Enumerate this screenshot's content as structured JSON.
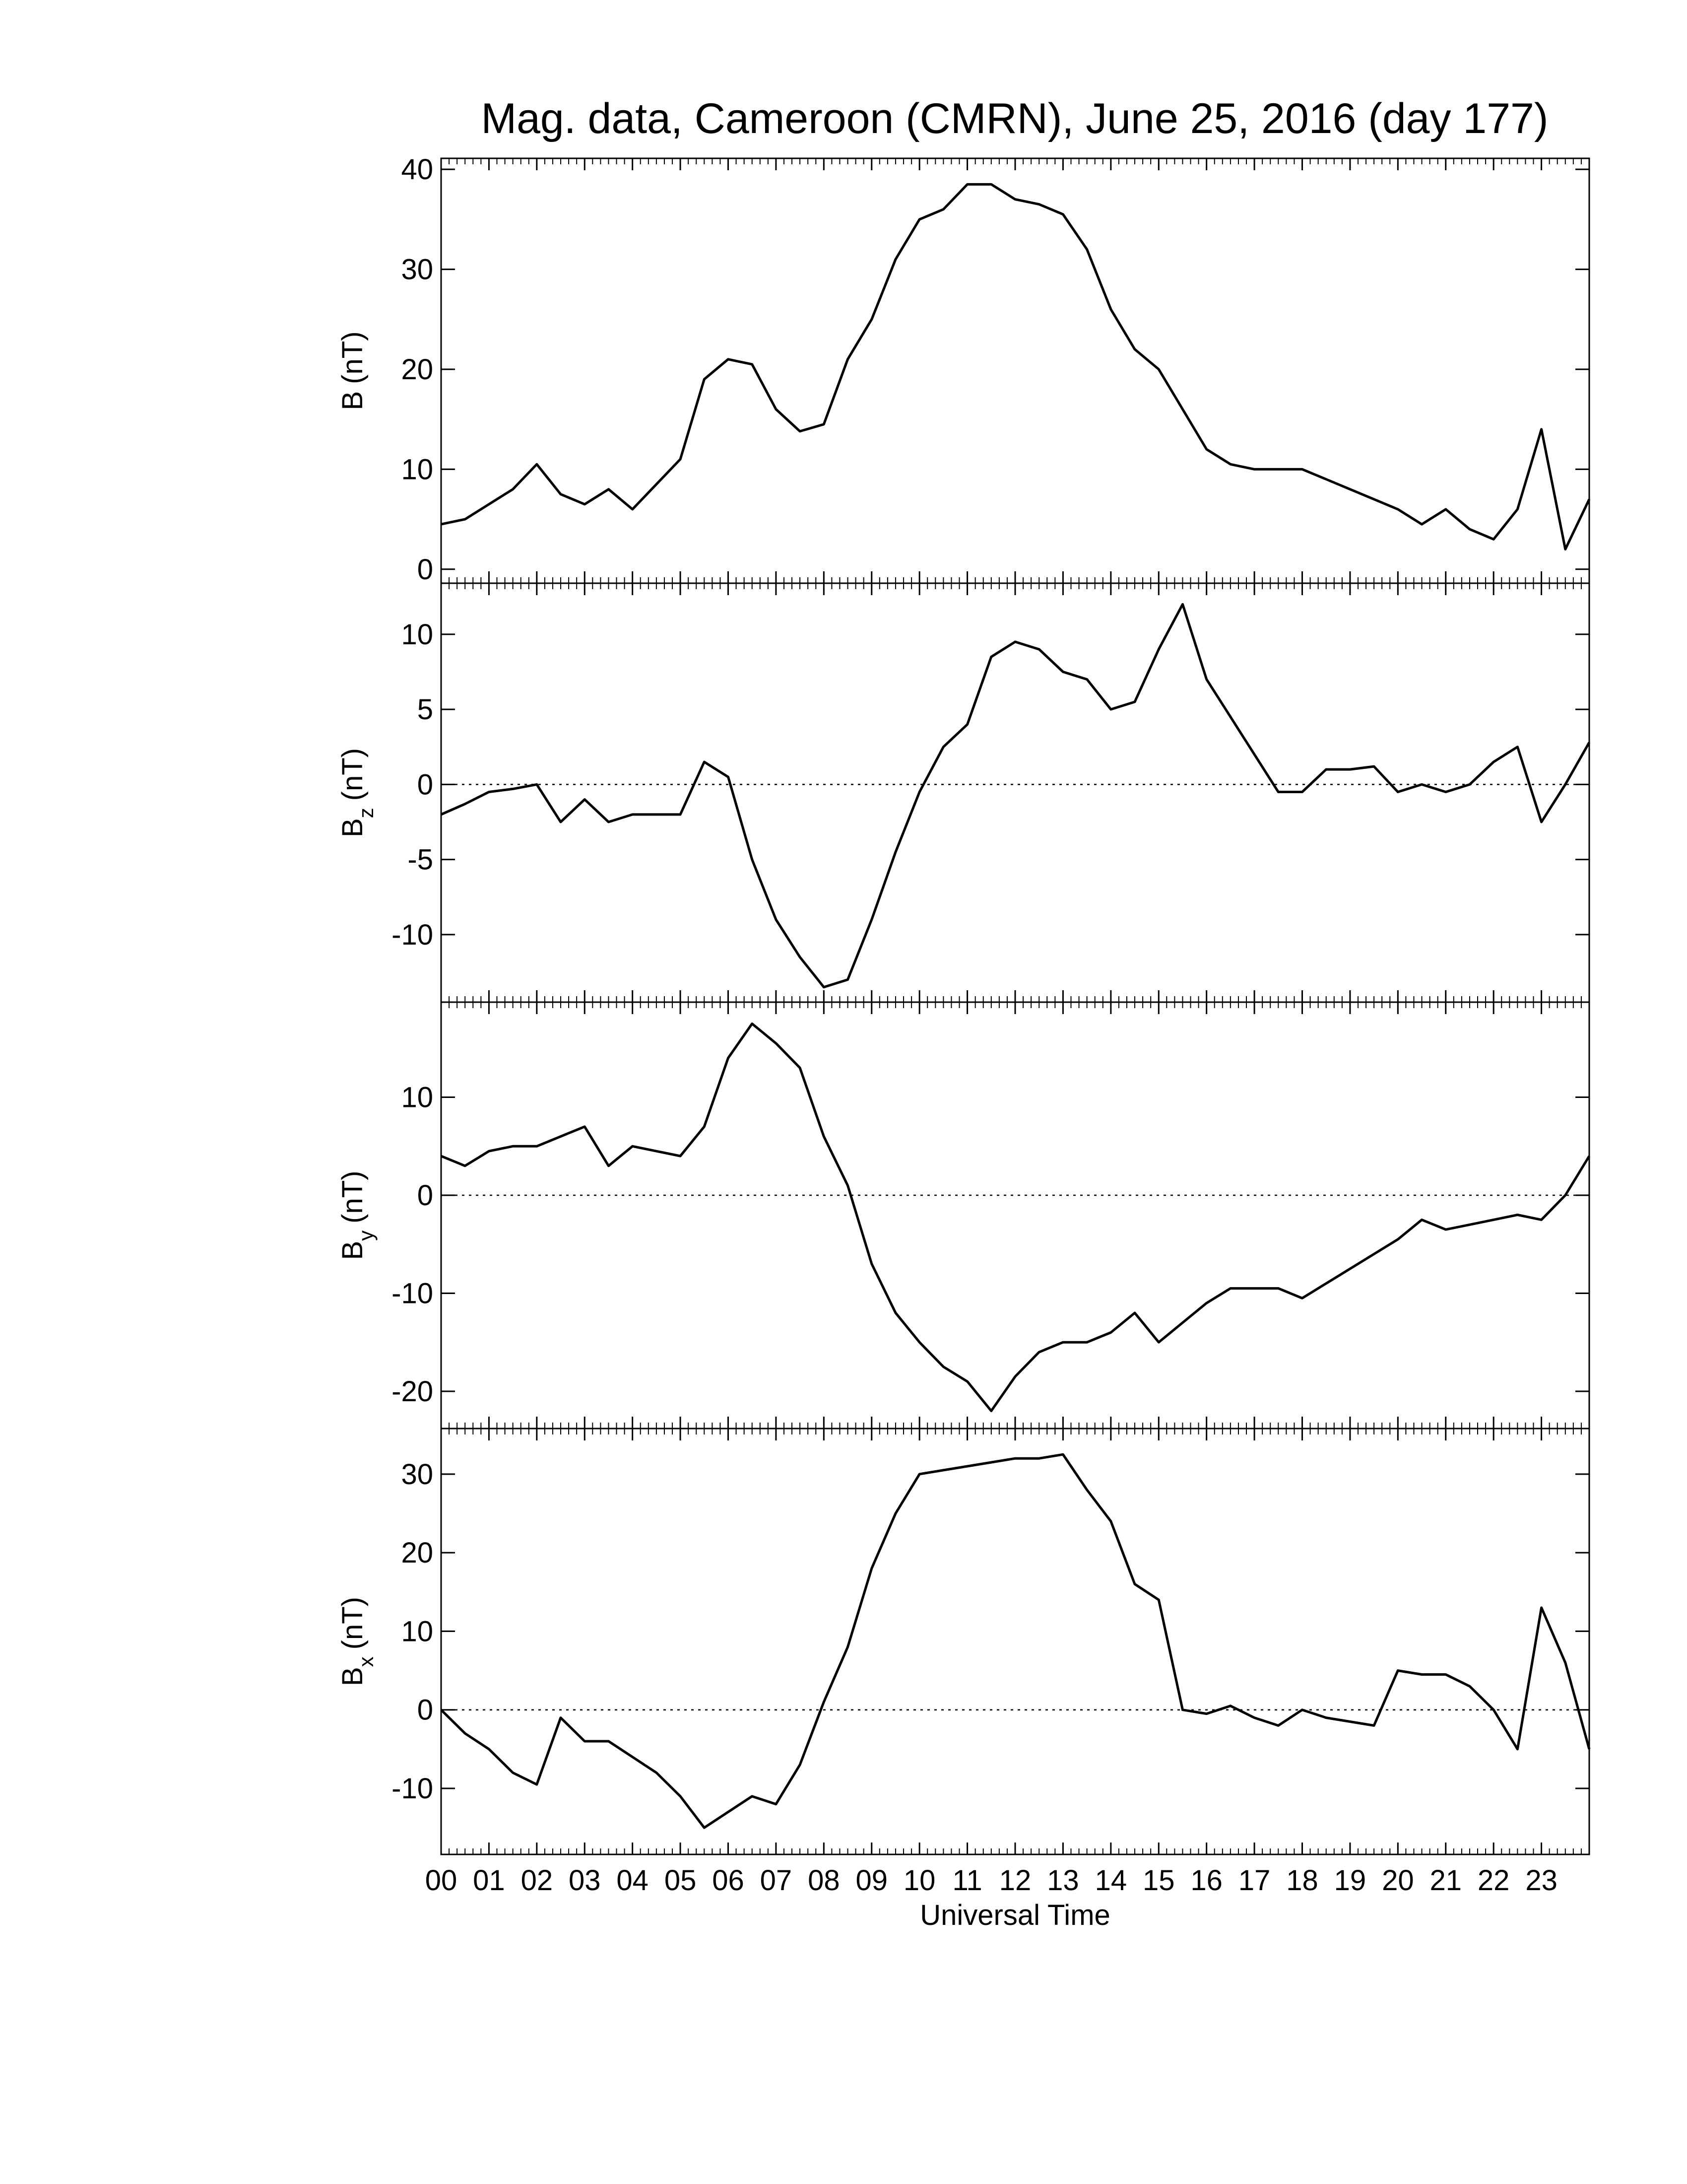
{
  "chart_data": [
    {
      "type": "line",
      "title": "Mag. data, Cameroon (CMRN), June 25, 2016 (day 177)",
      "ylabel": "B",
      "ylabel_unit": "(nT)",
      "color": "#000000",
      "x": [
        0,
        0.5,
        1,
        1.5,
        2,
        2.5,
        3,
        3.5,
        4,
        4.5,
        5,
        5.5,
        6,
        6.5,
        7,
        7.5,
        8,
        8.5,
        9,
        9.5,
        10,
        10.5,
        11,
        11.5,
        12,
        12.5,
        13,
        13.5,
        14,
        14.5,
        15,
        15.5,
        16,
        16.5,
        17,
        17.5,
        18,
        18.5,
        19,
        19.5,
        20,
        20.5,
        21,
        21.5,
        22,
        22.5,
        23,
        23.5,
        24
      ],
      "values": [
        4.5,
        5,
        6.5,
        8,
        10.5,
        7.5,
        6.5,
        8,
        6,
        8.5,
        11,
        19,
        21,
        20.5,
        16,
        13.8,
        14.5,
        21,
        25,
        31,
        35,
        36,
        38.5,
        38.5,
        37,
        36.5,
        35.5,
        32,
        26,
        22,
        20,
        16,
        12,
        10.5,
        10,
        10,
        10,
        9,
        8,
        7,
        6,
        4.5,
        6,
        4,
        3,
        6,
        14,
        2,
        7
      ],
      "xlim": [
        0,
        24
      ],
      "ylim": [
        -1.4,
        41.1
      ],
      "yticks": [
        0,
        10,
        20,
        30,
        40
      ],
      "zero_line": false
    },
    {
      "type": "line",
      "ylabel": "B",
      "ylabel_sub": "z",
      "ylabel_unit": "(nT)",
      "color": "#000000",
      "x": [
        0,
        0.5,
        1,
        1.5,
        2,
        2.5,
        3,
        3.5,
        4,
        4.5,
        5,
        5.5,
        6,
        6.5,
        7,
        7.5,
        8,
        8.5,
        9,
        9.5,
        10,
        10.5,
        11,
        11.5,
        12,
        12.5,
        13,
        13.5,
        14,
        14.5,
        15,
        15.5,
        16,
        16.5,
        17,
        17.5,
        18,
        18.5,
        19,
        19.5,
        20,
        20.5,
        21,
        21.5,
        22,
        22.5,
        23,
        23.5,
        24
      ],
      "values": [
        -2,
        -1.3,
        -0.5,
        -0.3,
        0,
        -2.5,
        -1,
        -2.5,
        -2,
        -2,
        -2,
        1.5,
        0.5,
        -5,
        -9,
        -11.5,
        -13.5,
        -13,
        -9,
        -4.5,
        -0.5,
        2.5,
        4,
        8.5,
        9.5,
        9,
        7.5,
        7,
        5,
        5.5,
        9,
        12,
        7,
        4.5,
        2,
        -0.5,
        -0.5,
        1,
        1,
        1.2,
        -0.5,
        0,
        -0.5,
        0,
        1.5,
        2.5,
        -2.5,
        0,
        2.8
      ],
      "xlim": [
        0,
        24
      ],
      "ylim": [
        -14.5,
        13.4
      ],
      "yticks": [
        -10,
        -5,
        0,
        5,
        10
      ],
      "zero_line": true
    },
    {
      "type": "line",
      "ylabel": "B",
      "ylabel_sub": "y",
      "ylabel_unit": "(nT)",
      "color": "#000000",
      "x": [
        0,
        0.5,
        1,
        1.5,
        2,
        2.5,
        3,
        3.5,
        4,
        4.5,
        5,
        5.5,
        6,
        6.5,
        7,
        7.5,
        8,
        8.5,
        9,
        9.5,
        10,
        10.5,
        11,
        11.5,
        12,
        12.5,
        13,
        13.5,
        14,
        14.5,
        15,
        15.5,
        16,
        16.5,
        17,
        17.5,
        18,
        18.5,
        19,
        19.5,
        20,
        20.5,
        21,
        21.5,
        22,
        22.5,
        23,
        23.5,
        24
      ],
      "values": [
        4,
        3,
        4.5,
        5,
        5,
        6,
        7,
        3,
        5,
        4.5,
        4,
        7,
        14,
        17.5,
        15.5,
        13,
        6,
        1,
        -7,
        -12,
        -15,
        -17.5,
        -19,
        -22,
        -18.5,
        -16,
        -15,
        -15,
        -14,
        -12,
        -15,
        -13,
        -11,
        -9.5,
        -9.5,
        -9.5,
        -10.5,
        -9,
        -7.5,
        -6,
        -4.5,
        -2.5,
        -3.5,
        -3,
        -2.5,
        -2,
        -2.5,
        0,
        4
      ],
      "xlim": [
        0,
        24
      ],
      "ylim": [
        -23.8,
        19.7
      ],
      "yticks": [
        -20,
        -10,
        0,
        10
      ],
      "zero_line": true
    },
    {
      "type": "line",
      "ylabel": "B",
      "ylabel_sub": "x",
      "ylabel_unit": "(nT)",
      "color": "#000000",
      "xlabel": "Universal Time",
      "x": [
        0,
        0.5,
        1,
        1.5,
        2,
        2.5,
        3,
        3.5,
        4,
        4.5,
        5,
        5.5,
        6,
        6.5,
        7,
        7.5,
        8,
        8.5,
        9,
        9.5,
        10,
        10.5,
        11,
        11.5,
        12,
        12.5,
        13,
        13.5,
        14,
        14.5,
        15,
        15.5,
        16,
        16.5,
        17,
        17.5,
        18,
        18.5,
        19,
        19.5,
        20,
        20.5,
        21,
        21.5,
        22,
        22.5,
        23,
        23.5,
        24
      ],
      "values": [
        0,
        -3,
        -5,
        -8,
        -9.5,
        -1,
        -4,
        -4,
        -6,
        -8,
        -11,
        -15,
        -13,
        -11,
        -12,
        -7,
        1,
        8,
        18,
        25,
        30,
        30.5,
        31,
        31.5,
        32,
        32,
        32.5,
        28,
        24,
        16,
        14,
        0,
        -0.5,
        0.5,
        -1,
        -2,
        0,
        -1,
        -1.5,
        -2,
        5,
        4.5,
        4.5,
        3,
        0,
        -5,
        13,
        6,
        -5
      ],
      "xlim": [
        0,
        24
      ],
      "ylim": [
        -18.4,
        35.8
      ],
      "yticks": [
        -10,
        0,
        10,
        20,
        30
      ],
      "zero_line": true,
      "xticks": [
        {
          "value": 0,
          "label": "00"
        },
        {
          "value": 1,
          "label": "01"
        },
        {
          "value": 2,
          "label": "02"
        },
        {
          "value": 3,
          "label": "03"
        },
        {
          "value": 4,
          "label": "04"
        },
        {
          "value": 5,
          "label": "05"
        },
        {
          "value": 6,
          "label": "06"
        },
        {
          "value": 7,
          "label": "07"
        },
        {
          "value": 8,
          "label": "08"
        },
        {
          "value": 9,
          "label": "09"
        },
        {
          "value": 10,
          "label": "10"
        },
        {
          "value": 11,
          "label": "11"
        },
        {
          "value": 12,
          "label": "12"
        },
        {
          "value": 13,
          "label": "13"
        },
        {
          "value": 14,
          "label": "14"
        },
        {
          "value": 15,
          "label": "15"
        },
        {
          "value": 16,
          "label": "16"
        },
        {
          "value": 17,
          "label": "17"
        },
        {
          "value": 18,
          "label": "18"
        },
        {
          "value": 19,
          "label": "19"
        },
        {
          "value": 20,
          "label": "20"
        },
        {
          "value": 21,
          "label": "21"
        },
        {
          "value": 22,
          "label": "22"
        },
        {
          "value": 23,
          "label": "23"
        }
      ]
    }
  ]
}
